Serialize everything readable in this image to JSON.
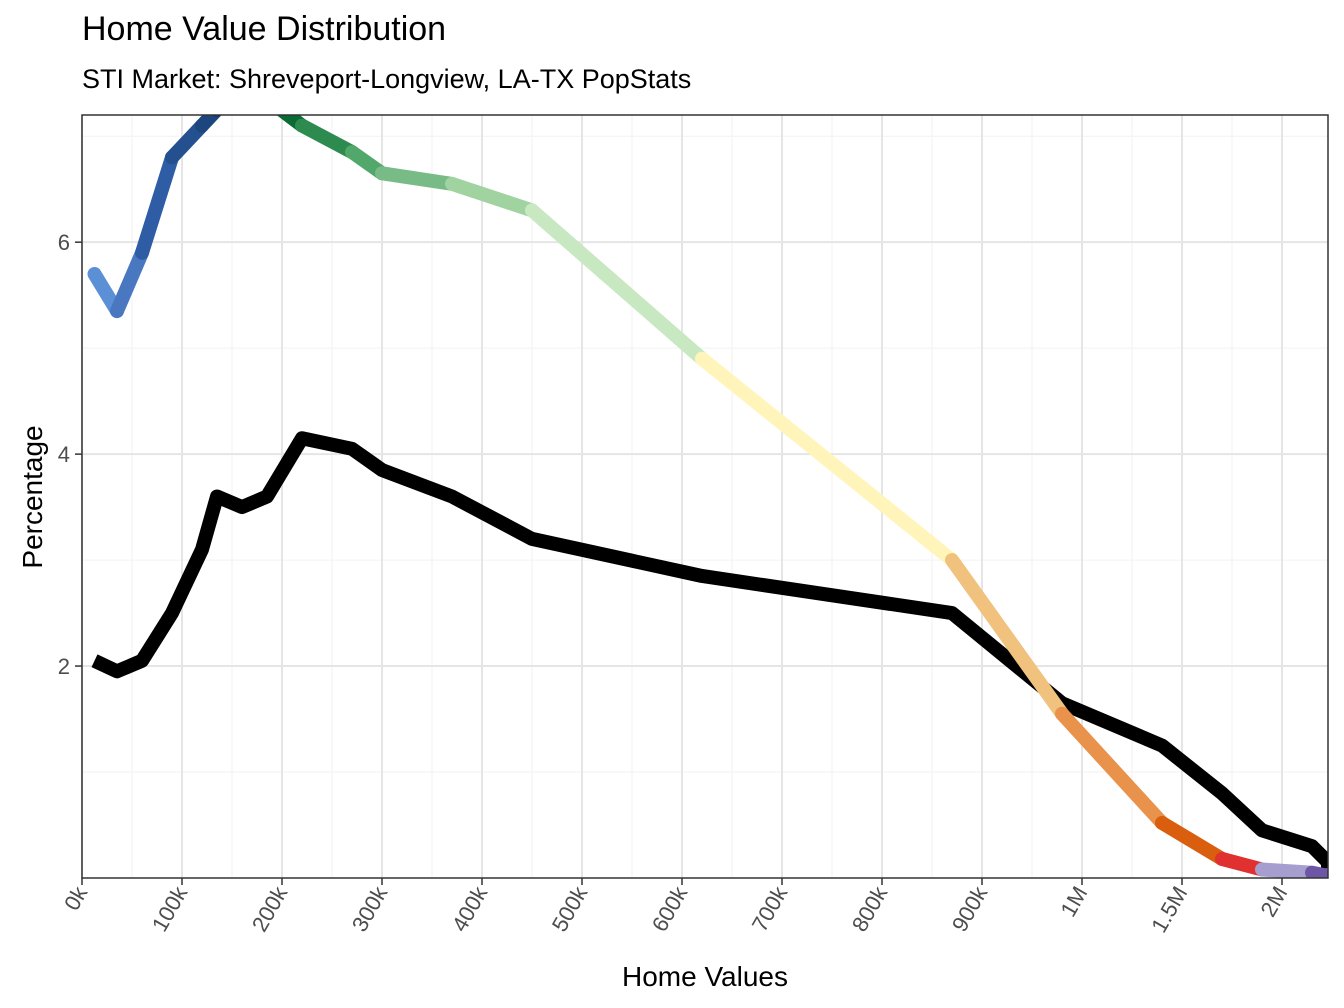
{
  "chart_data": {
    "type": "line",
    "title": "Home Value Distribution",
    "subtitle": "STI Market: Shreveport-Longview, LA-TX PopStats",
    "xlabel": "Home Values",
    "ylabel": "Percentage",
    "x_tick_labels": [
      "0k",
      "100k",
      "200k",
      "300k",
      "400k",
      "500k",
      "600k",
      "700k",
      "800k",
      "900k",
      "1M",
      "1.5M",
      "2M"
    ],
    "y_ticks": [
      2,
      4,
      6
    ],
    "ylim": [
      0,
      7.2
    ],
    "grid": true,
    "legend": "none",
    "x_categories": [
      "5k",
      "15k",
      "25k",
      "35k",
      "45k",
      "55k",
      "65k",
      "75k",
      "85k",
      "95k",
      "112.5k",
      "137.5k",
      "175k",
      "225k",
      "275k",
      "350k",
      "450k",
      "625k",
      "875k",
      "1.25M",
      "1.75M",
      "2M+"
    ],
    "series": [
      {
        "values": [
          5.7,
          5.35,
          5.9,
          6.8,
          7.1,
          7.25,
          7.35,
          7.35,
          7.1,
          6.85,
          6.65,
          6.55,
          6.3,
          4.9,
          3.0,
          1.55,
          0.52,
          0.18,
          0.08,
          0.05,
          0.02,
          0.03
        ],
        "segment_colors": [
          "#5b8fd6",
          "#4a78c0",
          "#2e5da6",
          "#24508f",
          "#1d457e",
          "#12306b",
          "#0c275b",
          "#0b6b35",
          "#2e8b50",
          "#52a86a",
          "#79bb86",
          "#a0d3a0",
          "#c8e8c2",
          "#fff5bb",
          "#f0c27e",
          "#e8924b",
          "#d95f0e",
          "#e03030",
          "#a69ecf",
          "#6c56a5",
          "#6c56a5",
          "#6c56a5"
        ]
      },
      {
        "color": "#000000",
        "values": [
          2.05,
          1.95,
          2.05,
          2.5,
          3.1,
          3.6,
          3.5,
          3.6,
          4.15,
          4.05,
          3.85,
          3.6,
          3.2,
          2.85,
          2.5,
          1.65,
          1.25,
          0.8,
          0.45,
          0.3,
          0.15,
          0.05
        ]
      }
    ]
  }
}
